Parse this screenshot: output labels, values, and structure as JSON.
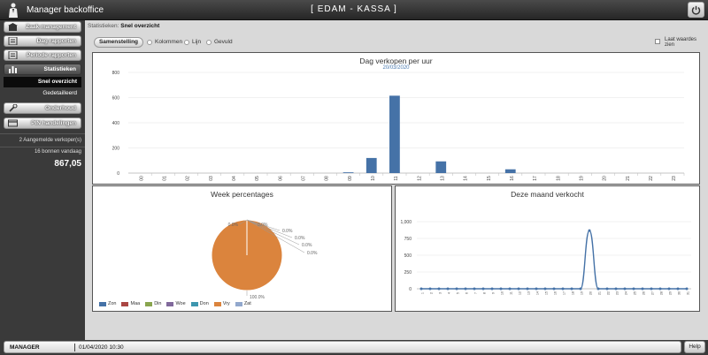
{
  "app": {
    "title": "Manager backoffice",
    "store": "[ EDAM - KASSA ]"
  },
  "sidebar": {
    "menu": [
      {
        "label": "Zaak management",
        "icon": "store-icon"
      },
      {
        "label": "Dag rapporten",
        "icon": "report-icon"
      },
      {
        "label": "Periode rapporten",
        "icon": "report-icon"
      },
      {
        "label": "Statistieken",
        "icon": "bar-chart-icon"
      },
      {
        "label": "Onderhoud",
        "icon": "wrench-icon"
      },
      {
        "label": "PIN handelingen",
        "icon": "card-icon"
      }
    ],
    "submenu": [
      {
        "label": "Snel overzicht"
      },
      {
        "label": "Gedetailleerd"
      }
    ],
    "logged_in": "2 Aangemelde verkoper(s)",
    "receipts": "16 bonnen vandaag",
    "total": "867,05"
  },
  "breadcrumb": {
    "section": "Statistieken:",
    "page": "Snel overzicht"
  },
  "toolbar": {
    "button": "Samenstelling",
    "options": [
      "Kolommen",
      "Lijn",
      "Gevuld"
    ],
    "show_values_line1": "Laat waardes",
    "show_values_line2": "zien"
  },
  "chart_data": [
    {
      "type": "bar",
      "title": "Dag verkopen per uur",
      "subtitle": "20/03/2020",
      "categories": [
        "00",
        "01",
        "02",
        "03",
        "04",
        "05",
        "06",
        "07",
        "08",
        "09",
        "10",
        "11",
        "12",
        "13",
        "14",
        "15",
        "16",
        "17",
        "18",
        "19",
        "20",
        "21",
        "22",
        "23"
      ],
      "values": [
        0,
        0,
        0,
        0,
        0,
        0,
        0,
        0,
        0,
        6,
        120,
        615,
        0,
        93,
        0,
        0,
        30,
        0,
        0,
        0,
        0,
        0,
        0,
        0
      ],
      "ylim": [
        0,
        800
      ],
      "yticks": [
        "0",
        "200",
        "400",
        "600",
        "800"
      ],
      "color": "#4572a7"
    },
    {
      "type": "pie",
      "title": "Week percentages",
      "labels": [
        "Zon",
        "Maa",
        "Din",
        "Woe",
        "Don",
        "Vry",
        "Zat"
      ],
      "values": [
        0,
        0,
        0,
        0,
        0,
        100,
        0
      ],
      "value_labels": [
        "0.0%",
        "0.0%",
        "0.0%",
        "0.0%",
        "0.0%",
        "100.0%",
        "0.0%"
      ],
      "colors": [
        "#4572a7",
        "#aa4643",
        "#89a54e",
        "#80699b",
        "#3d96ae",
        "#db843d",
        "#92a8cd"
      ]
    },
    {
      "type": "line",
      "title": "Deze maand verkocht",
      "x": [
        1,
        2,
        3,
        4,
        5,
        6,
        7,
        8,
        9,
        10,
        11,
        12,
        13,
        14,
        15,
        16,
        17,
        18,
        19,
        20,
        21,
        22,
        23,
        24,
        25,
        26,
        27,
        28,
        29,
        30,
        31
      ],
      "values": [
        0,
        0,
        0,
        0,
        0,
        0,
        0,
        0,
        0,
        0,
        0,
        0,
        0,
        0,
        0,
        0,
        0,
        0,
        0,
        867,
        0,
        0,
        0,
        0,
        0,
        0,
        0,
        0,
        0,
        0,
        0
      ],
      "ylim": [
        0,
        1000
      ],
      "yticks": [
        "0",
        "250",
        "500",
        "750",
        "1,000"
      ],
      "color": "#4572a7"
    }
  ],
  "status": {
    "user": "MANAGER",
    "datetime": "01/04/2020 10:30",
    "help": "Help"
  }
}
